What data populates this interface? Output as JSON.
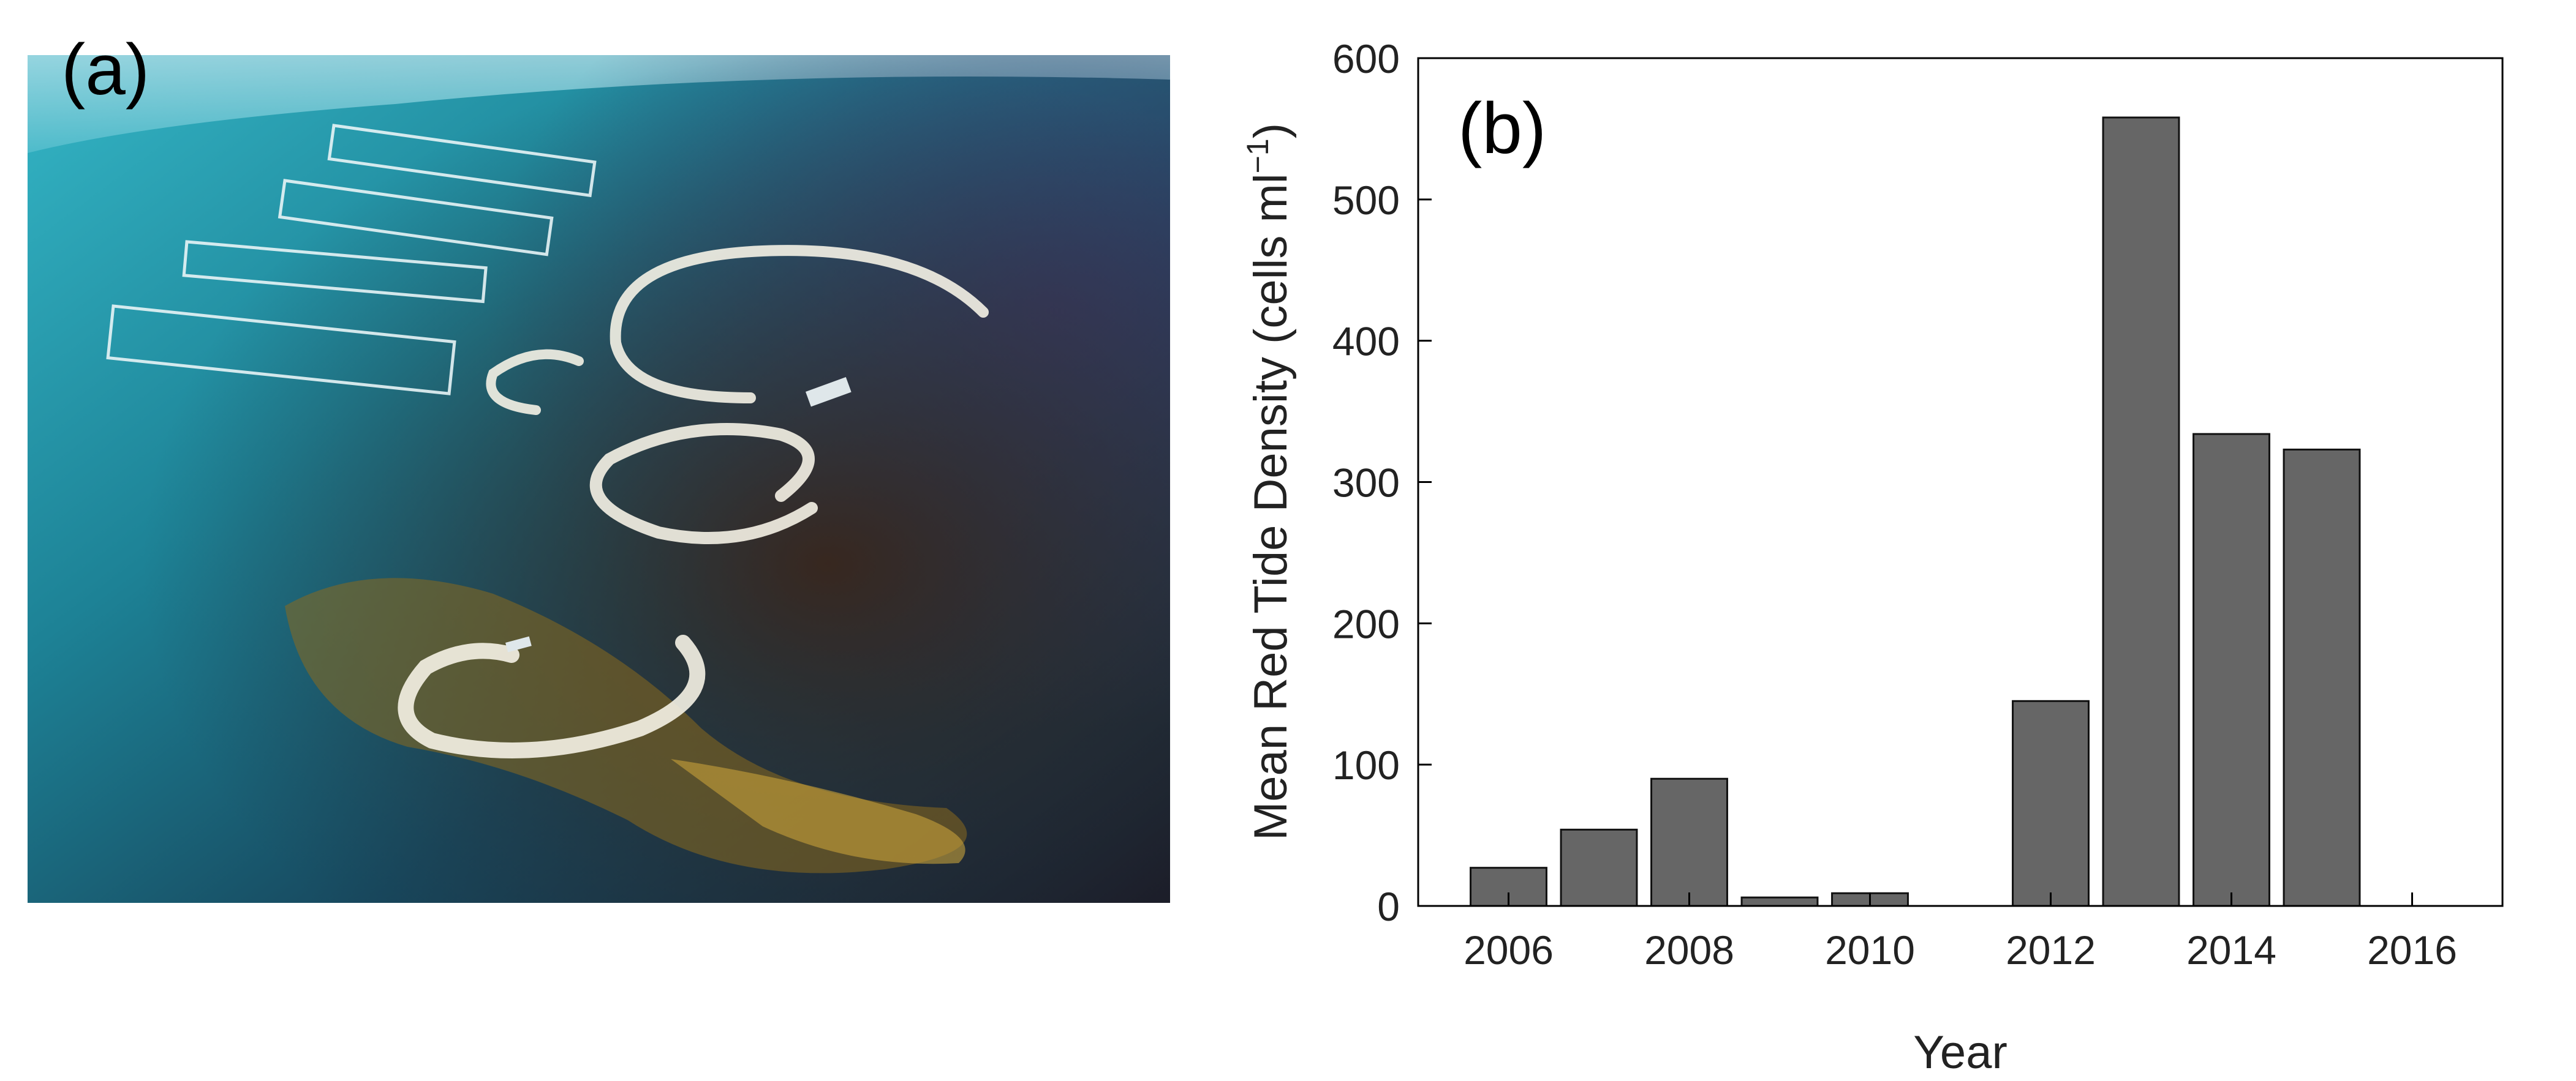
{
  "panel_a": {
    "label": "(a)",
    "image_subject": "aerial-photo"
  },
  "chart_data": {
    "type": "bar",
    "panel_label": "(b)",
    "title": "",
    "xlabel": "Year",
    "ylabel": "Mean Red Tide Density (cells ml",
    "ylabel_superscript": "−1",
    "ylabel_suffix": ")",
    "x": [
      2006,
      2007,
      2008,
      2009,
      2010,
      2011,
      2012,
      2013,
      2014,
      2015
    ],
    "values": [
      27,
      54,
      90,
      6,
      9,
      0,
      145,
      558,
      334,
      323
    ],
    "xlim": [
      2005,
      2017
    ],
    "ylim": [
      0,
      600
    ],
    "xticks": [
      2006,
      2008,
      2010,
      2012,
      2014,
      2016
    ],
    "yticks": [
      0,
      100,
      200,
      300,
      400,
      500,
      600
    ],
    "grid": false,
    "bar_color": "#666666"
  }
}
